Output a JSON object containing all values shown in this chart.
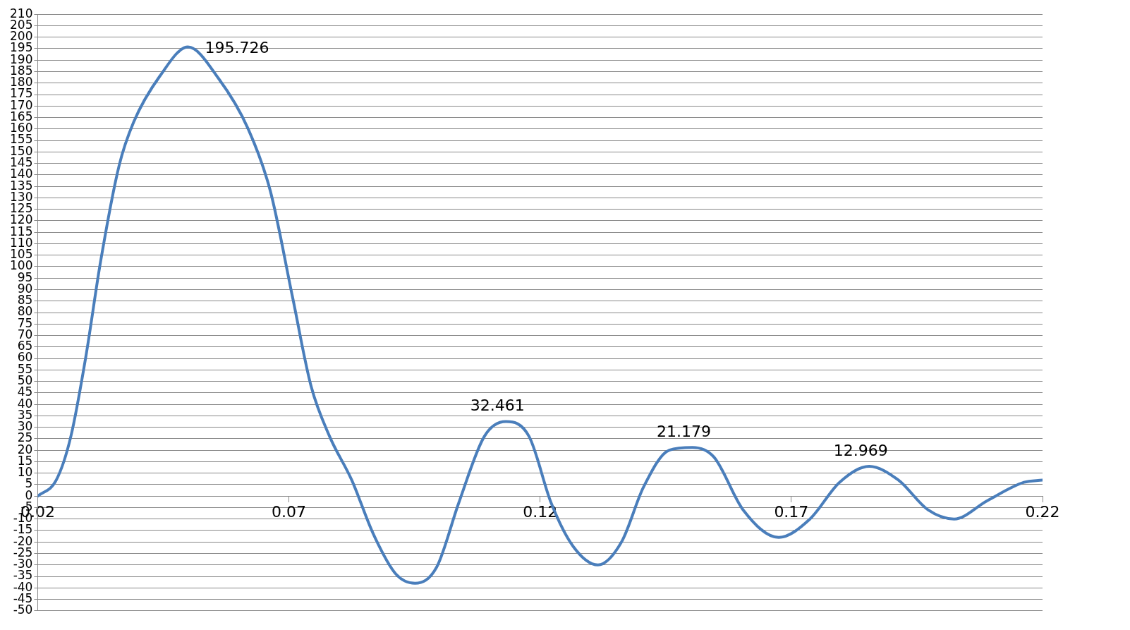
{
  "chart_data": {
    "type": "line",
    "x": [
      0.02,
      0.0237,
      0.0266,
      0.0296,
      0.0325,
      0.0362,
      0.0391,
      0.0443,
      0.0499,
      0.056,
      0.0619,
      0.0663,
      0.0707,
      0.0744,
      0.0781,
      0.0825,
      0.0869,
      0.0913,
      0.0951,
      0.0994,
      0.1038,
      0.1089,
      0.1132,
      0.1178,
      0.1222,
      0.1266,
      0.1315,
      0.1362,
      0.1406,
      0.1457,
      0.1503,
      0.1546,
      0.1604,
      0.1675,
      0.1737,
      0.1796,
      0.1855,
      0.1913,
      0.1972,
      0.2024,
      0.209,
      0.2163,
      0.22
    ],
    "series": [
      {
        "color": "#4a7ebb",
        "values": [
          0,
          7,
          26,
          61,
          102,
          144,
          163,
          183,
          195.726,
          182,
          160,
          133,
          87,
          48,
          26,
          7,
          -17,
          -34,
          -38,
          -31,
          -3,
          26,
          32.461,
          26,
          -3,
          -22,
          -30,
          -20,
          4,
          20,
          21.179,
          17,
          -6,
          -18,
          -10,
          6,
          12.969,
          7,
          -6,
          -10,
          -2,
          6,
          7
        ],
        "value_labels": [
          null,
          null,
          null,
          null,
          null,
          null,
          null,
          null,
          "195.726",
          null,
          null,
          null,
          null,
          null,
          null,
          null,
          null,
          null,
          null,
          null,
          null,
          null,
          "32.461",
          null,
          null,
          null,
          null,
          null,
          null,
          null,
          "21.179",
          null,
          null,
          null,
          null,
          null,
          "12.969",
          null,
          null,
          null,
          null,
          null,
          null
        ]
      }
    ],
    "xlim": [
      0.02,
      0.22
    ],
    "xticks": [
      0.02,
      0.07,
      0.12,
      0.17,
      0.22
    ],
    "ylim": [
      -50,
      210
    ],
    "yticks": [
      -50,
      -45,
      -40,
      -35,
      -30,
      -25,
      -20,
      -15,
      -10,
      -5,
      0,
      5,
      10,
      15,
      20,
      25,
      30,
      35,
      40,
      45,
      50,
      55,
      60,
      65,
      70,
      75,
      80,
      85,
      90,
      95,
      100,
      105,
      110,
      115,
      120,
      125,
      130,
      135,
      140,
      145,
      150,
      155,
      160,
      165,
      170,
      175,
      180,
      185,
      190,
      195,
      200,
      205,
      210
    ],
    "grid": "y",
    "legend": false,
    "marker": "none",
    "line_style": "solid"
  }
}
